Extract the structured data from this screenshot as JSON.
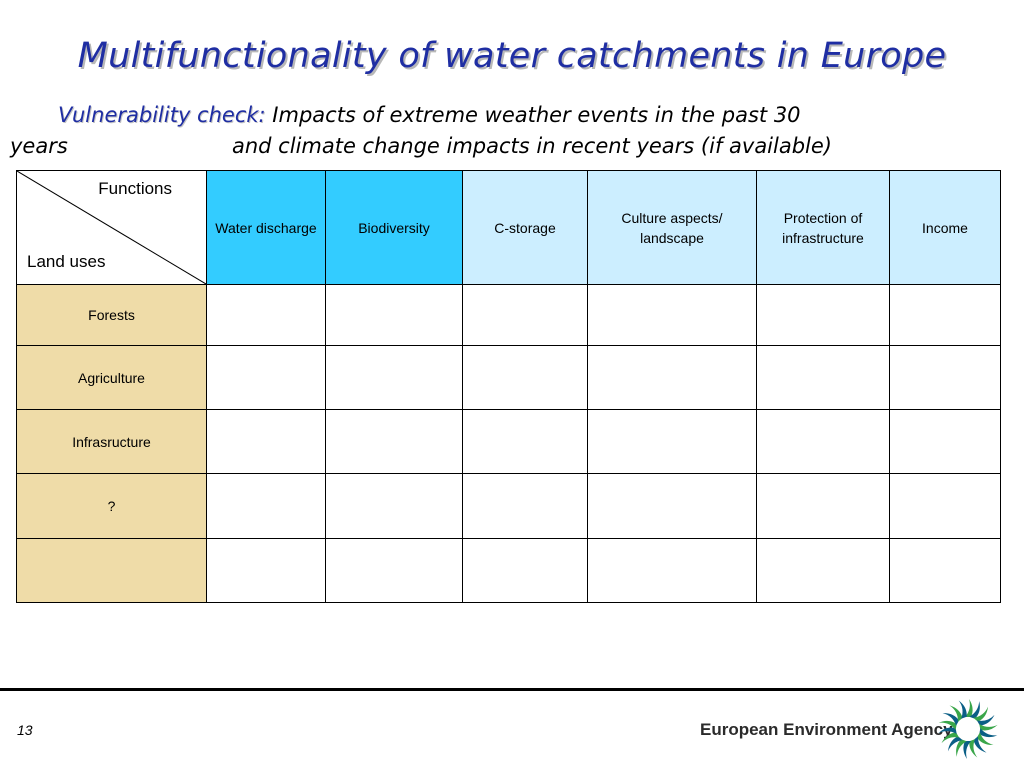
{
  "slide": {
    "title": "Multifunctionality of water catchments in Europe",
    "subtitle_lead": "Vulnerability check:",
    "subtitle_line1": "Impacts of extreme weather events in the past 30",
    "subtitle_line2_start": "years",
    "subtitle_line2_rest": "and climate change impacts in recent years (if available)"
  },
  "table": {
    "corner_functions": "Functions",
    "corner_land_uses": "Land uses",
    "columns": [
      {
        "label": "Water discharge",
        "color": "#33ccff"
      },
      {
        "label": "Biodiversity",
        "color": "#33ccff"
      },
      {
        "label": "C-storage",
        "color": "#cceeff"
      },
      {
        "label": "Culture aspects/ landscape",
        "color": "#cceeff"
      },
      {
        "label": "Protection of infrastructure",
        "color": "#cceeff"
      },
      {
        "label": "Income",
        "color": "#cceeff"
      }
    ],
    "rows": [
      "Forests",
      "Agriculture",
      "Infrasructure",
      "?",
      ""
    ],
    "row_color": "#efdca8"
  },
  "footer": {
    "page_number": "13",
    "agency": "European Environment Agency",
    "logo_icon": "eea-sun-logo-icon"
  },
  "colors": {
    "title": "#1f2ea3",
    "header_dark": "#33ccff",
    "header_light": "#cceeff",
    "logo_green": "#3aa64a",
    "logo_blue": "#0b5f86"
  }
}
